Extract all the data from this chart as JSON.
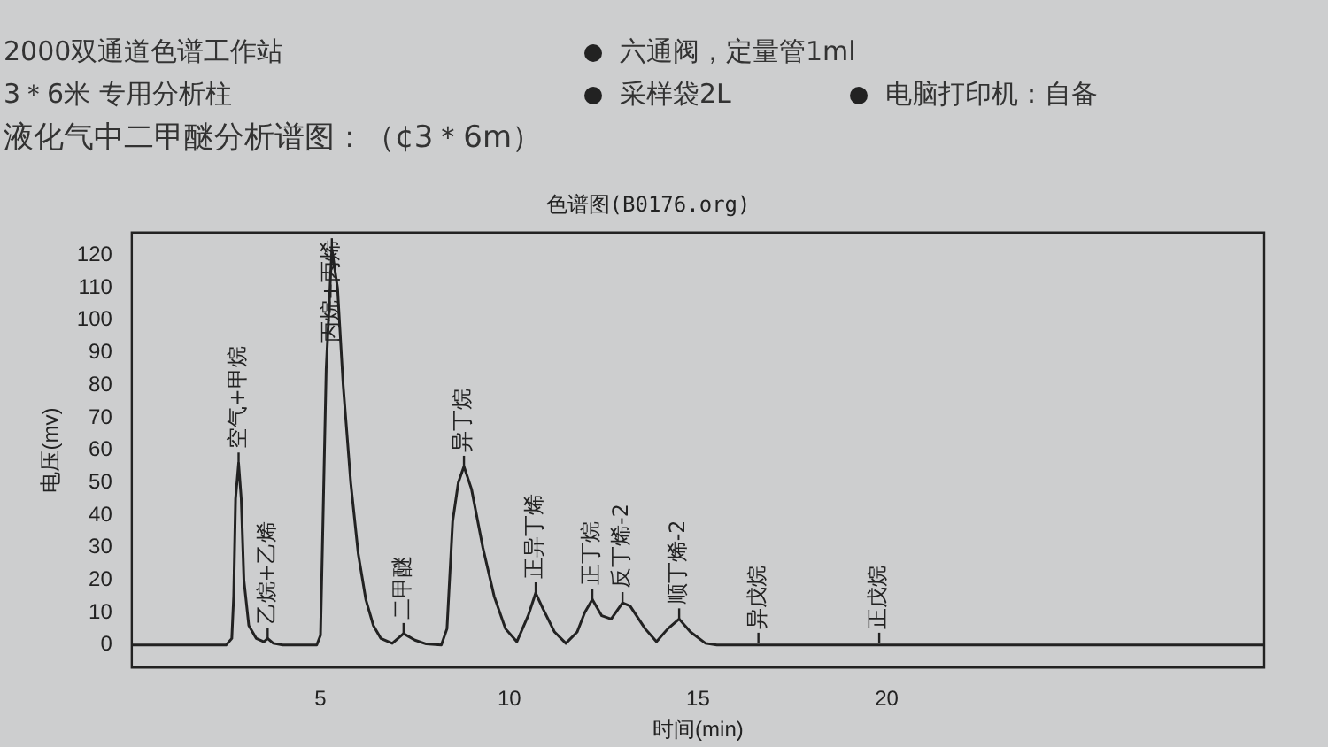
{
  "chart_data": {
    "type": "line",
    "title": "色谱图(B0176.org)",
    "xlabel": "时间(min)",
    "ylabel": "电压(mv)",
    "x": [
      0,
      2.5,
      2.65,
      2.7,
      2.75,
      2.83,
      2.9,
      2.97,
      3.1,
      3.3,
      3.5,
      3.6,
      3.75,
      4,
      4.9,
      5.0,
      5.05,
      5.15,
      5.3,
      5.45,
      5.6,
      5.8,
      6.0,
      6.2,
      6.4,
      6.6,
      6.9,
      7.2,
      7.5,
      7.8,
      8.2,
      8.35,
      8.5,
      8.65,
      8.8,
      9.0,
      9.3,
      9.6,
      9.9,
      10.2,
      10.5,
      10.7,
      10.9,
      11.2,
      11.5,
      11.8,
      12.0,
      12.2,
      12.45,
      12.7,
      13.0,
      13.2,
      13.6,
      13.9,
      14.2,
      14.5,
      14.8,
      15.2,
      15.5,
      30
    ],
    "series": [
      {
        "color": "#222222",
        "values": [
          0,
          0,
          2,
          15,
          45,
          56,
          45,
          20,
          6,
          2,
          1,
          2,
          0.5,
          0,
          0,
          3,
          30,
          85,
          122,
          110,
          80,
          50,
          28,
          14,
          6,
          2,
          0.5,
          3.5,
          1.5,
          0.3,
          0,
          5,
          38,
          50,
          55,
          48,
          30,
          15,
          5,
          1,
          9,
          16,
          11,
          4,
          0.5,
          4,
          10,
          14,
          9,
          8,
          13,
          12,
          5,
          1,
          5,
          8,
          4,
          0.5,
          0,
          0
        ]
      }
    ],
    "xlim": [
      0,
      30
    ],
    "xticks": [
      5,
      10,
      15,
      20
    ],
    "ylim": [
      -7,
      127
    ],
    "yticks": [
      0,
      10,
      20,
      30,
      40,
      50,
      60,
      70,
      80,
      90,
      100,
      110,
      120
    ],
    "grid": false,
    "legend": false,
    "marker": "none",
    "line_style": "solid",
    "annotations": [
      "2000双通道色谱工作站",
      "3＊6米 专用分析柱",
      "六通阀，定量管1ml",
      "采样袋2L",
      "电脑打印机：自备",
      "液化气中二甲醚分析谱图：（¢3＊6m）",
      {
        "text": "空气+甲烷",
        "x": 2.83,
        "y": 56
      },
      {
        "text": "乙烷+乙烯",
        "x": 3.6,
        "y": 2
      },
      {
        "text": "丙烷+丙烯",
        "x": 5.3,
        "y": 122
      },
      {
        "text": "二甲醚",
        "x": 7.2,
        "y": 3.5
      },
      {
        "text": "异丁烷",
        "x": 8.8,
        "y": 55
      },
      {
        "text": "正异丁烯",
        "x": 10.7,
        "y": 16
      },
      {
        "text": "正丁烷",
        "x": 12.2,
        "y": 14
      },
      {
        "text": "反丁烯-2",
        "x": 13.0,
        "y": 13
      },
      {
        "text": "顺丁烯-2",
        "x": 14.5,
        "y": 8
      },
      {
        "text": "异戊烷",
        "x": 16.6,
        "y": 0.5
      },
      {
        "text": "正戊烷",
        "x": 19.8,
        "y": 0.5
      }
    ]
  }
}
